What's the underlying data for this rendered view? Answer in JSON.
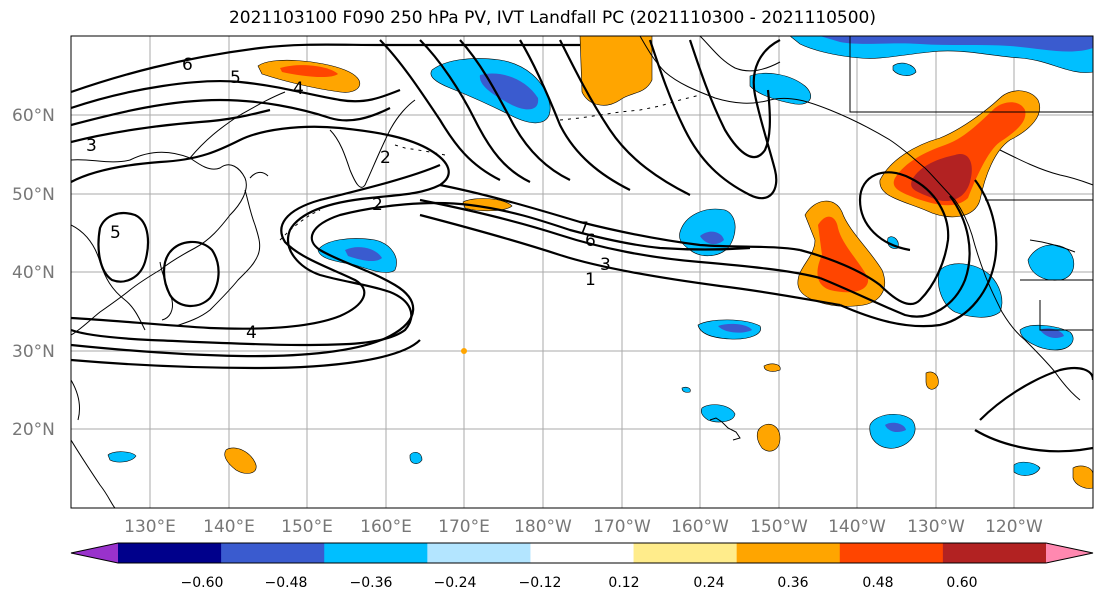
{
  "title": "2021103100 F090 250 hPa PV, IVT Landfall PC (2021110300 - 2021110500)",
  "map": {
    "lat_labels": [
      "60°N",
      "50°N",
      "40°N",
      "30°N",
      "20°N"
    ],
    "lon_labels": [
      "130°E",
      "140°E",
      "150°E",
      "160°E",
      "170°E",
      "180°W",
      "170°W",
      "160°W",
      "150°W",
      "140°W",
      "130°W",
      "120°W"
    ],
    "contour_labels": [
      "6",
      "5",
      "4",
      "3",
      "2",
      "2",
      "7",
      "6",
      "3",
      "1",
      "5",
      "4"
    ]
  },
  "colorbar": {
    "tick_labels": [
      "−0.60",
      "−0.48",
      "−0.36",
      "−0.24",
      "−0.12",
      "0.12",
      "0.24",
      "0.36",
      "0.48",
      "0.60"
    ],
    "colors": [
      "#9932cc",
      "#00008b",
      "#3a5bcf",
      "#00bfff",
      "#b3e5ff",
      "#ffffff",
      "#ffec8b",
      "#ffa500",
      "#ff4500",
      "#b22222",
      "#ff88b0"
    ]
  }
}
